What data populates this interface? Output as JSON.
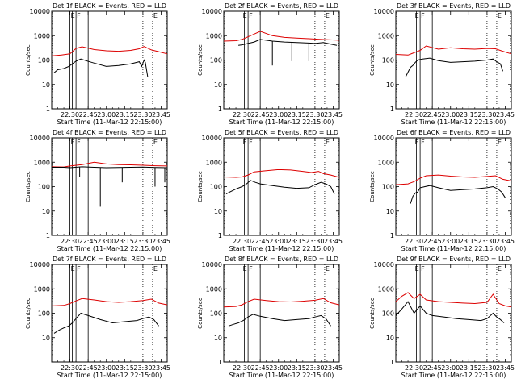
{
  "chart_data": {
    "type": "line",
    "layout": "3x3 grid of panels",
    "xlabel": "Start Time (11-Mar-12 22:15:00)",
    "ylabel": "Counts/sec",
    "y_scale": "log",
    "ylim": [
      1,
      10000
    ],
    "y_ticks": [
      1,
      10,
      100,
      1000,
      10000
    ],
    "y_tick_labels": [
      "1",
      "10",
      "100",
      "1000",
      "10000"
    ],
    "xlim_minutes_after_start": [
      0,
      95
    ],
    "x_ticks_minutes": [
      15,
      30,
      45,
      60,
      75,
      90
    ],
    "x_tick_labels": [
      "22:30",
      "22:45",
      "23:00",
      "23:15",
      "23:30",
      "23:45"
    ],
    "series_colors": {
      "Events": "#000000",
      "LLD": "#dd0000"
    },
    "marker_labels": [
      "E",
      "F",
      "E"
    ],
    "panels": [
      {
        "title": "Det 1f BLACK = Events, RED = LLD",
        "markers": [
          {
            "t": 15,
            "style": "solid",
            "label": "E"
          },
          {
            "t": 17,
            "style": "solid",
            "label": ""
          },
          {
            "t": 20,
            "style": "solid",
            "label": "F"
          },
          {
            "t": 30,
            "style": "solid",
            "label": ""
          },
          {
            "t": 75,
            "style": "dotted",
            "label": ""
          },
          {
            "t": 83,
            "style": "dotted",
            "label": "E"
          }
        ],
        "lld": {
          "t": [
            0,
            8,
            15,
            20,
            25,
            35,
            45,
            55,
            65,
            72,
            76,
            82,
            88,
            95
          ],
          "v": [
            150,
            160,
            180,
            300,
            350,
            270,
            240,
            230,
            250,
            290,
            360,
            260,
            220,
            180
          ]
        },
        "events": {
          "t": [
            2,
            5,
            10,
            14,
            17,
            20,
            24,
            28,
            35,
            45,
            55,
            65,
            72,
            74,
            76,
            77,
            79
          ],
          "v": [
            30,
            40,
            45,
            55,
            70,
            90,
            110,
            95,
            75,
            55,
            60,
            70,
            85,
            55,
            100,
            80,
            20
          ]
        }
      },
      {
        "title": "Det 2f BLACK = Events, RED = LLD",
        "markers": [
          {
            "t": 15,
            "style": "solid",
            "label": "E"
          },
          {
            "t": 17,
            "style": "solid",
            "label": ""
          },
          {
            "t": 20,
            "style": "solid",
            "label": "F"
          },
          {
            "t": 30,
            "style": "solid",
            "label": ""
          },
          {
            "t": 75,
            "style": "dotted",
            "label": ""
          },
          {
            "t": 83,
            "style": "dotted",
            "label": "E"
          }
        ],
        "lld": {
          "t": [
            0,
            10,
            15,
            22,
            30,
            40,
            50,
            60,
            70,
            80,
            95
          ],
          "v": [
            600,
            620,
            700,
            1000,
            1500,
            1000,
            850,
            800,
            750,
            700,
            650
          ]
        },
        "events": {
          "t": [
            12,
            15,
            20,
            25,
            30,
            40,
            50,
            60,
            70,
            75,
            82,
            88,
            93
          ],
          "v": [
            400,
            420,
            480,
            550,
            700,
            600,
            550,
            520,
            500,
            480,
            520,
            450,
            400
          ]
        },
        "dropouts": [
          {
            "t": 40,
            "v": 60
          },
          {
            "t": 56,
            "v": 90
          },
          {
            "t": 70,
            "v": 90
          }
        ]
      },
      {
        "title": "Det 3f BLACK = Events, RED = LLD",
        "markers": [
          {
            "t": 15,
            "style": "solid",
            "label": "E"
          },
          {
            "t": 17,
            "style": "solid",
            "label": ""
          },
          {
            "t": 20,
            "style": "solid",
            "label": "F"
          },
          {
            "t": 30,
            "style": "solid",
            "label": ""
          },
          {
            "t": 75,
            "style": "dotted",
            "label": ""
          },
          {
            "t": 83,
            "style": "dotted",
            "label": "E"
          }
        ],
        "lld": {
          "t": [
            0,
            10,
            15,
            20,
            25,
            35,
            45,
            55,
            65,
            75,
            82,
            88,
            95
          ],
          "v": [
            170,
            160,
            200,
            250,
            380,
            280,
            320,
            290,
            280,
            300,
            290,
            230,
            180
          ]
        },
        "events": {
          "t": [
            8,
            12,
            14,
            16,
            18,
            22,
            28,
            35,
            45,
            55,
            65,
            75,
            80,
            83,
            86,
            88
          ],
          "v": [
            20,
            50,
            60,
            80,
            100,
            110,
            120,
            95,
            80,
            85,
            90,
            100,
            110,
            85,
            70,
            35
          ]
        }
      },
      {
        "title": "Det 4f BLACK = Events, RED = LLD",
        "markers": [
          {
            "t": 15,
            "style": "solid",
            "label": "E"
          },
          {
            "t": 17,
            "style": "solid",
            "label": ""
          },
          {
            "t": 20,
            "style": "solid",
            "label": "F"
          },
          {
            "t": 30,
            "style": "solid",
            "label": ""
          },
          {
            "t": 75,
            "style": "dotted",
            "label": ""
          },
          {
            "t": 83,
            "style": "dotted",
            "label": "E"
          }
        ],
        "lld": {
          "t": [
            0,
            10,
            15,
            25,
            35,
            45,
            55,
            65,
            75,
            85,
            95
          ],
          "v": [
            650,
            640,
            700,
            800,
            1000,
            850,
            800,
            780,
            750,
            720,
            700
          ]
        },
        "events": {
          "t": [
            0,
            10,
            15,
            25,
            35,
            45,
            55,
            65,
            75,
            85,
            95
          ],
          "v": [
            620,
            620,
            600,
            650,
            620,
            600,
            610,
            620,
            630,
            610,
            600
          ]
        },
        "dropouts": [
          {
            "t": 23,
            "v": 250
          },
          {
            "t": 40,
            "v": 15
          },
          {
            "t": 58,
            "v": 150
          },
          {
            "t": 85,
            "v": 100
          },
          {
            "t": 93,
            "v": 150
          }
        ]
      },
      {
        "title": "Det 5f BLACK = Events, RED = LLD",
        "markers": [
          {
            "t": 15,
            "style": "solid",
            "label": "E"
          },
          {
            "t": 17,
            "style": "solid",
            "label": ""
          },
          {
            "t": 20,
            "style": "solid",
            "label": "F"
          },
          {
            "t": 30,
            "style": "solid",
            "label": ""
          },
          {
            "t": 75,
            "style": "dotted",
            "label": ""
          },
          {
            "t": 83,
            "style": "dotted",
            "label": "E"
          }
        ],
        "lld": {
          "t": [
            0,
            10,
            15,
            20,
            25,
            35,
            45,
            55,
            65,
            72,
            78,
            82,
            88,
            95
          ],
          "v": [
            250,
            240,
            250,
            300,
            400,
            450,
            500,
            480,
            420,
            380,
            420,
            340,
            300,
            240
          ]
        },
        "events": {
          "t": [
            2,
            5,
            10,
            15,
            18,
            22,
            26,
            30,
            40,
            50,
            60,
            70,
            75,
            80,
            84,
            88,
            91
          ],
          "v": [
            50,
            60,
            80,
            100,
            120,
            180,
            150,
            130,
            110,
            95,
            85,
            90,
            120,
            150,
            130,
            100,
            50
          ]
        }
      },
      {
        "title": "Det 6f BLACK = Events, RED = LLD",
        "markers": [
          {
            "t": 15,
            "style": "solid",
            "label": "E"
          },
          {
            "t": 17,
            "style": "solid",
            "label": ""
          },
          {
            "t": 20,
            "style": "solid",
            "label": "F"
          },
          {
            "t": 30,
            "style": "solid",
            "label": ""
          },
          {
            "t": 75,
            "style": "dotted",
            "label": ""
          },
          {
            "t": 83,
            "style": "dotted",
            "label": "E"
          }
        ],
        "lld": {
          "t": [
            0,
            10,
            15,
            20,
            25,
            35,
            45,
            55,
            65,
            75,
            82,
            88,
            95
          ],
          "v": [
            120,
            130,
            160,
            220,
            280,
            300,
            270,
            250,
            240,
            260,
            280,
            200,
            170
          ]
        },
        "events": {
          "t": [
            12,
            14,
            16,
            18,
            20,
            24,
            28,
            35,
            45,
            55,
            65,
            75,
            80,
            84,
            87,
            90
          ],
          "v": [
            20,
            40,
            55,
            60,
            90,
            100,
            110,
            90,
            70,
            75,
            80,
            90,
            100,
            80,
            60,
            35
          ]
        }
      },
      {
        "title": "Det 7f BLACK = Events, RED = LLD",
        "markers": [
          {
            "t": 15,
            "style": "solid",
            "label": "E"
          },
          {
            "t": 17,
            "style": "solid",
            "label": ""
          },
          {
            "t": 20,
            "style": "solid",
            "label": "F"
          },
          {
            "t": 30,
            "style": "solid",
            "label": ""
          },
          {
            "t": 75,
            "style": "dotted",
            "label": ""
          },
          {
            "t": 83,
            "style": "dotted",
            "label": "E"
          }
        ],
        "lld": {
          "t": [
            0,
            10,
            15,
            20,
            25,
            35,
            45,
            55,
            65,
            75,
            82,
            88,
            95
          ],
          "v": [
            200,
            210,
            250,
            320,
            400,
            350,
            300,
            280,
            300,
            330,
            380,
            260,
            220
          ]
        },
        "events": {
          "t": [
            2,
            6,
            10,
            14,
            17,
            20,
            24,
            30,
            40,
            50,
            60,
            70,
            75,
            80,
            84,
            88
          ],
          "v": [
            15,
            20,
            25,
            30,
            40,
            60,
            100,
            80,
            55,
            40,
            45,
            50,
            60,
            70,
            55,
            30
          ]
        }
      },
      {
        "title": "Det 8f BLACK = Events, RED = LLD",
        "markers": [
          {
            "t": 15,
            "style": "solid",
            "label": "E"
          },
          {
            "t": 17,
            "style": "solid",
            "label": ""
          },
          {
            "t": 20,
            "style": "solid",
            "label": "F"
          },
          {
            "t": 30,
            "style": "solid",
            "label": ""
          },
          {
            "t": 75,
            "style": "dotted",
            "label": ""
          },
          {
            "t": 83,
            "style": "dotted",
            "label": "E"
          }
        ],
        "lld": {
          "t": [
            0,
            10,
            15,
            20,
            25,
            35,
            45,
            55,
            65,
            75,
            82,
            88,
            95
          ],
          "v": [
            180,
            190,
            220,
            300,
            380,
            330,
            300,
            290,
            310,
            340,
            400,
            270,
            220
          ]
        },
        "events": {
          "t": [
            4,
            8,
            12,
            16,
            20,
            24,
            30,
            40,
            50,
            60,
            70,
            75,
            80,
            84,
            88
          ],
          "v": [
            30,
            35,
            40,
            50,
            70,
            90,
            75,
            60,
            50,
            55,
            60,
            70,
            80,
            60,
            30
          ]
        }
      },
      {
        "title": "Det 9f BLACK = Events, RED = LLD",
        "markers": [
          {
            "t": 15,
            "style": "solid",
            "label": "E"
          },
          {
            "t": 17,
            "style": "solid",
            "label": ""
          },
          {
            "t": 20,
            "style": "solid",
            "label": "F"
          },
          {
            "t": 30,
            "style": "solid",
            "label": ""
          },
          {
            "t": 75,
            "style": "dotted",
            "label": ""
          },
          {
            "t": 83,
            "style": "dotted",
            "label": "E"
          }
        ],
        "lld": {
          "t": [
            0,
            5,
            10,
            15,
            20,
            25,
            35,
            45,
            55,
            65,
            75,
            80,
            85,
            90,
            95
          ],
          "v": [
            300,
            500,
            700,
            400,
            600,
            350,
            300,
            280,
            260,
            250,
            280,
            600,
            250,
            200,
            180
          ]
        },
        "events": {
          "t": [
            0,
            5,
            10,
            15,
            20,
            25,
            30,
            40,
            50,
            60,
            70,
            75,
            80,
            83,
            86,
            89
          ],
          "v": [
            80,
            150,
            300,
            100,
            200,
            100,
            80,
            70,
            60,
            55,
            50,
            60,
            100,
            70,
            55,
            40
          ]
        }
      }
    ]
  }
}
